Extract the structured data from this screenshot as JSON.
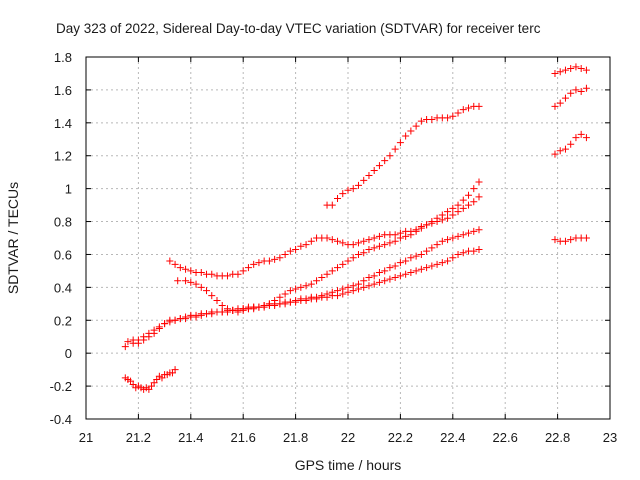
{
  "chart_data": {
    "type": "scatter",
    "title": "Day 323 of 2022, Sidereal Day-to-day VTEC variation (SDTVAR) for receiver terc",
    "xlabel": "GPS time / hours",
    "ylabel": "SDTVAR / TECUs",
    "xlim": [
      21,
      23
    ],
    "ylim": [
      -0.4,
      1.8
    ],
    "xticks": [
      "21",
      "21.2",
      "21.4",
      "21.6",
      "21.8",
      "22",
      "22.2",
      "22.4",
      "22.6",
      "22.8",
      "23"
    ],
    "yticks": [
      "-0.4",
      "-0.2",
      "0",
      "0.2",
      "0.4",
      "0.6",
      "0.8",
      "1",
      "1.2",
      "1.4",
      "1.6",
      "1.8"
    ],
    "grid": true,
    "legend": "none",
    "marker": "plus",
    "color": "#ff0000",
    "series": [
      {
        "x": [
          21.15,
          21.16,
          21.17,
          21.18,
          21.19,
          21.2,
          21.21,
          21.22,
          21.23,
          21.24,
          21.25,
          21.26,
          21.27,
          21.28,
          21.29,
          21.3,
          21.31,
          21.32,
          21.33,
          21.34
        ],
        "y": [
          -0.15,
          -0.16,
          -0.17,
          -0.19,
          -0.21,
          -0.2,
          -0.21,
          -0.22,
          -0.21,
          -0.22,
          -0.2,
          -0.18,
          -0.16,
          -0.14,
          -0.15,
          -0.13,
          -0.13,
          -0.12,
          -0.12,
          -0.1
        ]
      },
      {
        "x": [
          21.15,
          21.18,
          21.2,
          21.22,
          21.24,
          21.26,
          21.28,
          21.3,
          21.32,
          21.34,
          21.36,
          21.38,
          21.4,
          21.42,
          21.44,
          21.46,
          21.48,
          21.5,
          21.52,
          21.54,
          21.56,
          21.58,
          21.6,
          21.62,
          21.64,
          21.66,
          21.68,
          21.7,
          21.72,
          21.74,
          21.76,
          21.78,
          21.8,
          21.82,
          21.84,
          21.86,
          21.88,
          21.9,
          21.92,
          21.94,
          21.96,
          21.98,
          22,
          22.02,
          22.04,
          22.06,
          22.08,
          22.1,
          22.12,
          22.14,
          22.16,
          22.18,
          22.2,
          22.22,
          22.24,
          22.26,
          22.28,
          22.3,
          22.32,
          22.34,
          22.36,
          22.38,
          22.4,
          22.42,
          22.44,
          22.46,
          22.48,
          22.5
        ],
        "y": [
          0.04,
          0.06,
          0.08,
          0.1,
          0.12,
          0.14,
          0.16,
          0.18,
          0.19,
          0.2,
          0.21,
          0.22,
          0.23,
          0.23,
          0.24,
          0.24,
          0.25,
          0.25,
          0.25,
          0.25,
          0.26,
          0.26,
          0.27,
          0.27,
          0.27,
          0.28,
          0.28,
          0.29,
          0.29,
          0.3,
          0.3,
          0.31,
          0.31,
          0.32,
          0.32,
          0.33,
          0.33,
          0.34,
          0.34,
          0.35,
          0.35,
          0.36,
          0.37,
          0.38,
          0.39,
          0.4,
          0.41,
          0.42,
          0.43,
          0.44,
          0.45,
          0.46,
          0.47,
          0.48,
          0.49,
          0.5,
          0.51,
          0.52,
          0.53,
          0.54,
          0.55,
          0.56,
          0.58,
          0.6,
          0.61,
          0.62,
          0.62,
          0.63
        ]
      },
      {
        "x": [
          21.16,
          21.18,
          21.2,
          21.22,
          21.24,
          21.26,
          21.28,
          21.3,
          21.32,
          21.34,
          21.36,
          21.38,
          21.4,
          21.42,
          21.44,
          21.46,
          21.48,
          21.5,
          21.52,
          21.54,
          21.56,
          21.58,
          21.6,
          21.62,
          21.64,
          21.66,
          21.68,
          21.7,
          21.72,
          21.74,
          21.76,
          21.78,
          21.8,
          21.82,
          21.84,
          21.86,
          21.88,
          21.9,
          21.92,
          21.94,
          21.96,
          21.98,
          22,
          22.02,
          22.04,
          22.06,
          22.08,
          22.1,
          22.12,
          22.14,
          22.16,
          22.18,
          22.2,
          22.22,
          22.24,
          22.26,
          22.28,
          22.3,
          22.32,
          22.34,
          22.36,
          22.38,
          22.4,
          22.42,
          22.44,
          22.46,
          22.48,
          22.5
        ],
        "y": [
          0.07,
          0.08,
          0.06,
          0.08,
          0.1,
          0.12,
          0.15,
          0.18,
          0.2,
          0.2,
          0.21,
          0.21,
          0.22,
          0.22,
          0.23,
          0.24,
          0.24,
          0.25,
          0.25,
          0.26,
          0.26,
          0.27,
          0.27,
          0.28,
          0.28,
          0.28,
          0.29,
          0.3,
          0.3,
          0.3,
          0.31,
          0.31,
          0.32,
          0.33,
          0.33,
          0.34,
          0.34,
          0.35,
          0.36,
          0.37,
          0.38,
          0.39,
          0.4,
          0.41,
          0.42,
          0.44,
          0.46,
          0.47,
          0.49,
          0.5,
          0.52,
          0.53,
          0.55,
          0.56,
          0.58,
          0.59,
          0.6,
          0.62,
          0.64,
          0.66,
          0.68,
          0.69,
          0.7,
          0.71,
          0.72,
          0.73,
          0.74,
          0.75
        ]
      },
      {
        "x": [
          21.32,
          21.34,
          21.36,
          21.38,
          21.4,
          21.42,
          21.44,
          21.46,
          21.48,
          21.5,
          21.52,
          21.54,
          21.56,
          21.58,
          21.6,
          21.62,
          21.64,
          21.66,
          21.68,
          21.7,
          21.72,
          21.74,
          21.76,
          21.78,
          21.8,
          21.82,
          21.84,
          21.86,
          21.88,
          21.9,
          21.92,
          21.94,
          21.96,
          21.98,
          22,
          22.02,
          22.04,
          22.06,
          22.08,
          22.1,
          22.12,
          22.14,
          22.16,
          22.18,
          22.2,
          22.22,
          22.24,
          22.26,
          22.28,
          22.3,
          22.32,
          22.34,
          22.36,
          22.38,
          22.4,
          22.42,
          22.44,
          22.46,
          22.48,
          22.5
        ],
        "y": [
          0.56,
          0.54,
          0.52,
          0.51,
          0.5,
          0.49,
          0.49,
          0.48,
          0.48,
          0.47,
          0.47,
          0.47,
          0.48,
          0.48,
          0.5,
          0.52,
          0.54,
          0.55,
          0.56,
          0.56,
          0.57,
          0.58,
          0.6,
          0.62,
          0.63,
          0.65,
          0.66,
          0.68,
          0.7,
          0.7,
          0.7,
          0.69,
          0.68,
          0.67,
          0.66,
          0.66,
          0.67,
          0.68,
          0.69,
          0.7,
          0.71,
          0.72,
          0.72,
          0.72,
          0.73,
          0.74,
          0.74,
          0.75,
          0.77,
          0.78,
          0.79,
          0.8,
          0.81,
          0.82,
          0.84,
          0.86,
          0.88,
          0.9,
          0.92,
          0.95
        ]
      },
      {
        "x": [
          21.35,
          21.38,
          21.4,
          21.42,
          21.44,
          21.46,
          21.48,
          21.5,
          21.52,
          21.54,
          21.56,
          21.58,
          21.6,
          21.62,
          21.64,
          21.66,
          21.68,
          21.7,
          21.72,
          21.74,
          21.76,
          21.78,
          21.8,
          21.82,
          21.84,
          21.86,
          21.88,
          21.9,
          21.92,
          21.94,
          21.96,
          21.98,
          22,
          22.02,
          22.04,
          22.06,
          22.08,
          22.1,
          22.12,
          22.14,
          22.16,
          22.18,
          22.2,
          22.22,
          22.24,
          22.26,
          22.28,
          22.3,
          22.32,
          22.34,
          22.36,
          22.38,
          22.4,
          22.42,
          22.44,
          22.46,
          22.48,
          22.5
        ],
        "y": [
          0.44,
          0.44,
          0.43,
          0.42,
          0.4,
          0.38,
          0.35,
          0.32,
          0.29,
          0.27,
          0.26,
          0.25,
          0.26,
          0.27,
          0.28,
          0.28,
          0.29,
          0.3,
          0.32,
          0.34,
          0.36,
          0.38,
          0.39,
          0.4,
          0.41,
          0.42,
          0.44,
          0.46,
          0.48,
          0.5,
          0.52,
          0.54,
          0.56,
          0.58,
          0.6,
          0.61,
          0.63,
          0.64,
          0.65,
          0.66,
          0.67,
          0.68,
          0.7,
          0.71,
          0.72,
          0.74,
          0.76,
          0.78,
          0.8,
          0.82,
          0.84,
          0.86,
          0.88,
          0.9,
          0.93,
          0.96,
          1.0,
          1.04
        ]
      },
      {
        "x": [
          21.92,
          21.94,
          21.96,
          21.98,
          22,
          22.02,
          22.04,
          22.06,
          22.08,
          22.1,
          22.12,
          22.14,
          22.16,
          22.18,
          22.2,
          22.22,
          22.24,
          22.26,
          22.28,
          22.3,
          22.32,
          22.34,
          22.36,
          22.38,
          22.4,
          22.42,
          22.44,
          22.46,
          22.48,
          22.5
        ],
        "y": [
          0.9,
          0.9,
          0.94,
          0.97,
          0.99,
          1.0,
          1.02,
          1.05,
          1.08,
          1.11,
          1.14,
          1.17,
          1.2,
          1.24,
          1.28,
          1.32,
          1.35,
          1.38,
          1.41,
          1.42,
          1.42,
          1.43,
          1.43,
          1.43,
          1.44,
          1.46,
          1.48,
          1.49,
          1.5,
          1.5
        ]
      },
      {
        "x": [
          22.79,
          22.81,
          22.83,
          22.85,
          22.87,
          22.89,
          22.91
        ],
        "y": [
          1.7,
          1.71,
          1.72,
          1.73,
          1.74,
          1.73,
          1.72
        ]
      },
      {
        "x": [
          22.79,
          22.81,
          22.83,
          22.85,
          22.87,
          22.89,
          22.91
        ],
        "y": [
          1.5,
          1.52,
          1.55,
          1.58,
          1.6,
          1.59,
          1.61
        ]
      },
      {
        "x": [
          22.79,
          22.81,
          22.83,
          22.85,
          22.87,
          22.89,
          22.91
        ],
        "y": [
          1.21,
          1.23,
          1.24,
          1.27,
          1.31,
          1.33,
          1.31
        ]
      },
      {
        "x": [
          22.79,
          22.81,
          22.83,
          22.85,
          22.87,
          22.89,
          22.91
        ],
        "y": [
          0.69,
          0.68,
          0.68,
          0.69,
          0.7,
          0.7,
          0.7
        ]
      }
    ]
  }
}
